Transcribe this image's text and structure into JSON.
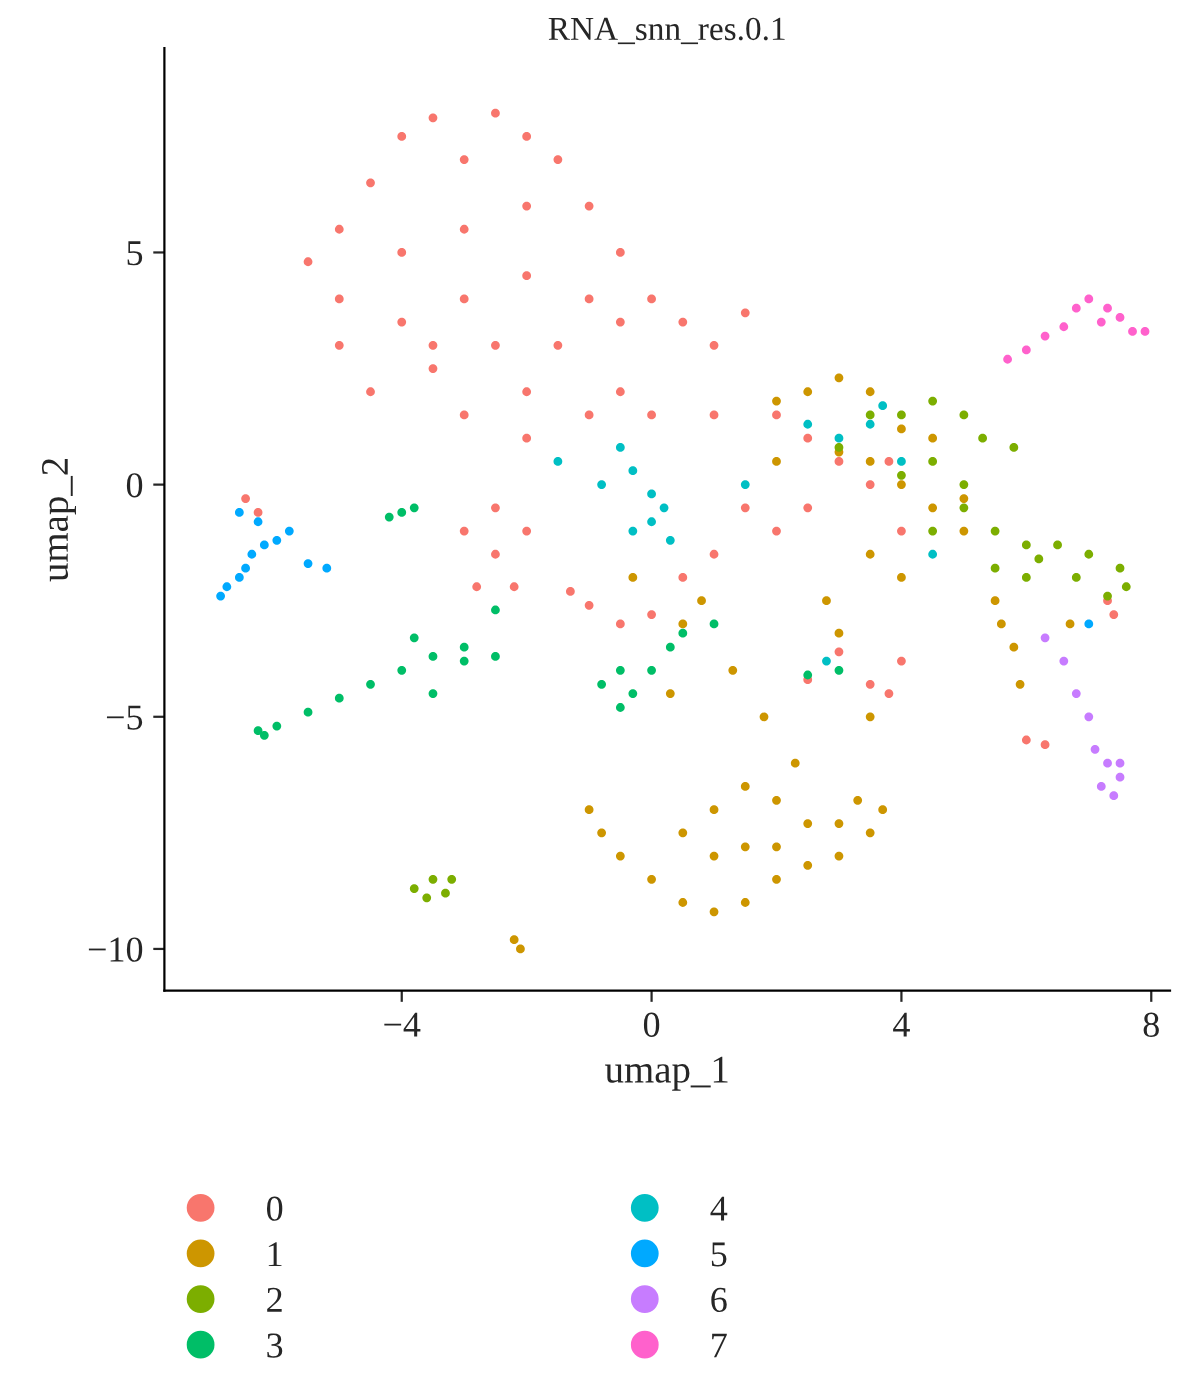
{
  "chart_data": {
    "type": "scatter",
    "title": "RNA_snn_res.0.1",
    "xlabel": "umap_1",
    "ylabel": "umap_2",
    "xlim": [
      -7.8,
      8.3
    ],
    "ylim": [
      -10.9,
      9.4
    ],
    "xticks": [
      {
        "value": -4,
        "label": "−4"
      },
      0,
      4,
      8
    ],
    "yticks": [
      {
        "value": -10,
        "label": "−10"
      },
      {
        "value": -5,
        "label": "−5"
      },
      0,
      5
    ],
    "grid": false,
    "legend": "bottom",
    "marker": "circle",
    "series": [
      {
        "name": "0",
        "color": "#f8766d",
        "x": [
          -3.5,
          -2.5,
          -2,
          -4,
          -3,
          -1.5,
          -4.5,
          -5,
          -5.5,
          -5,
          -4,
          -3,
          -2,
          -1,
          -0.5,
          -1,
          -2,
          -3,
          -4,
          -5,
          -4.5,
          -3.5,
          -2.5,
          -1.5,
          -0.5,
          0,
          0.5,
          1,
          -3,
          -2,
          -1,
          0,
          1,
          2,
          1.5,
          2.5,
          3,
          3.5,
          2.5,
          2,
          1,
          0.5,
          0,
          -0.5,
          -1,
          -1.3,
          -2.5,
          -2,
          -3,
          -2.5,
          -2.8,
          -2.2,
          -6.5,
          -6.3,
          3,
          3.5,
          4,
          2.5,
          3.8,
          7.3,
          7.4,
          6,
          6.3,
          4,
          3.8,
          1.5,
          -3.5,
          -2,
          -0.5
        ],
        "values": [
          7.9,
          8,
          7.5,
          7.5,
          7,
          7,
          6.5,
          5.5,
          4.8,
          4,
          5,
          5.5,
          6,
          6,
          5,
          4,
          4.5,
          4,
          3.5,
          3,
          2,
          2.5,
          3,
          3,
          3.5,
          4,
          3.5,
          3,
          1.5,
          1,
          1.5,
          1.5,
          1.5,
          1.5,
          3.7,
          1,
          0.5,
          0,
          -0.5,
          -1,
          -1.5,
          -2,
          -2.8,
          -3,
          -2.6,
          -2.3,
          -0.5,
          -1,
          -1,
          -1.5,
          -2.2,
          -2.2,
          -0.3,
          -0.6,
          -3.6,
          -4.3,
          -3.8,
          -4.2,
          -4.5,
          -2.5,
          -2.8,
          -5.5,
          -5.6,
          -1,
          0.5,
          -0.5,
          3,
          2,
          2
        ]
      },
      {
        "name": "1",
        "color": "#cd9600",
        "x": [
          -1,
          -0.8,
          -0.5,
          0,
          0.5,
          1,
          1.5,
          2,
          2.5,
          3,
          3.5,
          3.7,
          3.3,
          2.5,
          2,
          1.5,
          1,
          0.5,
          1,
          1.5,
          2,
          3,
          2.3,
          1.8,
          1.3,
          0.5,
          0.3,
          3.5,
          -2.1,
          -2.2,
          2,
          2.5,
          3,
          3.5,
          4,
          4.5,
          3,
          2,
          3.5,
          4,
          4.5,
          5,
          3.5,
          4,
          5.5,
          5.6,
          5.8,
          5.9,
          6.7,
          5,
          3,
          2.8,
          -0.3,
          0.8
        ],
        "values": [
          -7,
          -7.5,
          -8,
          -8.5,
          -9,
          -9.2,
          -9,
          -8.5,
          -8.2,
          -8,
          -7.5,
          -7,
          -6.8,
          -7.3,
          -6.8,
          -6.5,
          -7,
          -7.5,
          -8,
          -7.8,
          -7.8,
          -7.3,
          -6,
          -5,
          -4,
          -3,
          -4.5,
          -5,
          -10,
          -9.8,
          1.8,
          2,
          2.3,
          2,
          1.2,
          1,
          0.7,
          0.5,
          0.5,
          0,
          -0.5,
          -1,
          -1.5,
          -2,
          -2.5,
          -3,
          -3.5,
          -4.3,
          -3,
          -0.3,
          -3.2,
          -2.5,
          -2,
          -2.5
        ]
      },
      {
        "name": "2",
        "color": "#7cae00",
        "x": [
          3,
          3.5,
          4,
          4.5,
          5,
          5.3,
          5.8,
          5,
          4.5,
          4,
          5,
          5.5,
          6,
          6.5,
          7,
          7.5,
          7.6,
          7.3,
          6.8,
          6,
          5.5,
          4.5,
          6.2,
          -3.5,
          -3.8,
          -3.3,
          -3.6,
          -3.2
        ],
        "values": [
          0.8,
          1.5,
          1.5,
          1.8,
          1.5,
          1,
          0.8,
          0,
          0.5,
          0.2,
          -0.5,
          -1,
          -1.3,
          -1.3,
          -1.5,
          -1.8,
          -2.2,
          -2.4,
          -2,
          -2,
          -1.8,
          -1,
          -1.6,
          -8.5,
          -8.7,
          -8.8,
          -8.9,
          -8.5
        ]
      },
      {
        "name": "3",
        "color": "#00be67",
        "x": [
          -4,
          -3.5,
          -3,
          -3.8,
          -4.5,
          -5,
          -5.5,
          -3.5,
          -3,
          -2.5,
          -6.3,
          -6,
          -6.2,
          -0.5,
          -0.3,
          -0.8,
          0,
          0.3,
          0.5,
          -0.5,
          -4,
          -3.8,
          -4.2,
          1,
          3,
          2.5,
          -2.5
        ],
        "values": [
          -4,
          -3.7,
          -3.5,
          -3.3,
          -4.3,
          -4.6,
          -4.9,
          -4.5,
          -3.8,
          -3.7,
          -5.3,
          -5.2,
          -5.4,
          -4,
          -4.5,
          -4.3,
          -4,
          -3.5,
          -3.2,
          -4.8,
          -0.6,
          -0.5,
          -0.7,
          -3,
          -4,
          -4.1,
          -2.7
        ]
      },
      {
        "name": "4",
        "color": "#00bfc4",
        "x": [
          -0.5,
          -0.3,
          0,
          0,
          0.3,
          -0.8,
          -0.3,
          0.2,
          2.5,
          3,
          3.5,
          4,
          4.5,
          2.8,
          -1.5,
          1.5,
          3.7
        ],
        "values": [
          0.8,
          0.3,
          -0.2,
          -0.8,
          -1.2,
          0,
          -1,
          -0.5,
          1.3,
          1,
          1.3,
          0.5,
          -1.5,
          -3.8,
          0.5,
          0,
          1.7
        ]
      },
      {
        "name": "5",
        "color": "#00a9ff",
        "x": [
          -6.9,
          -6.8,
          -6.6,
          -6.4,
          -6.2,
          -6,
          -5.8,
          -6.3,
          -5.5,
          -5.2,
          -6.5,
          7,
          -6.6
        ],
        "values": [
          -2.4,
          -2.2,
          -2,
          -1.5,
          -1.3,
          -1.2,
          -1,
          -0.8,
          -1.7,
          -1.8,
          -1.8,
          -3,
          -0.6
        ]
      },
      {
        "name": "6",
        "color": "#c77cff",
        "x": [
          6.3,
          6.6,
          6.8,
          7,
          7.1,
          7.3,
          7.5,
          7.4,
          7.2,
          7.5
        ],
        "values": [
          -3.3,
          -3.8,
          -4.5,
          -5,
          -5.7,
          -6,
          -6.3,
          -6.7,
          -6.5,
          -6
        ]
      },
      {
        "name": "7",
        "color": "#ff61cc",
        "x": [
          5.7,
          6,
          6.3,
          6.6,
          6.8,
          7,
          7.3,
          7.5,
          7.7,
          7.9,
          7.2
        ],
        "values": [
          2.7,
          2.9,
          3.2,
          3.4,
          3.8,
          4,
          3.8,
          3.6,
          3.3,
          3.3,
          3.5
        ]
      }
    ]
  }
}
